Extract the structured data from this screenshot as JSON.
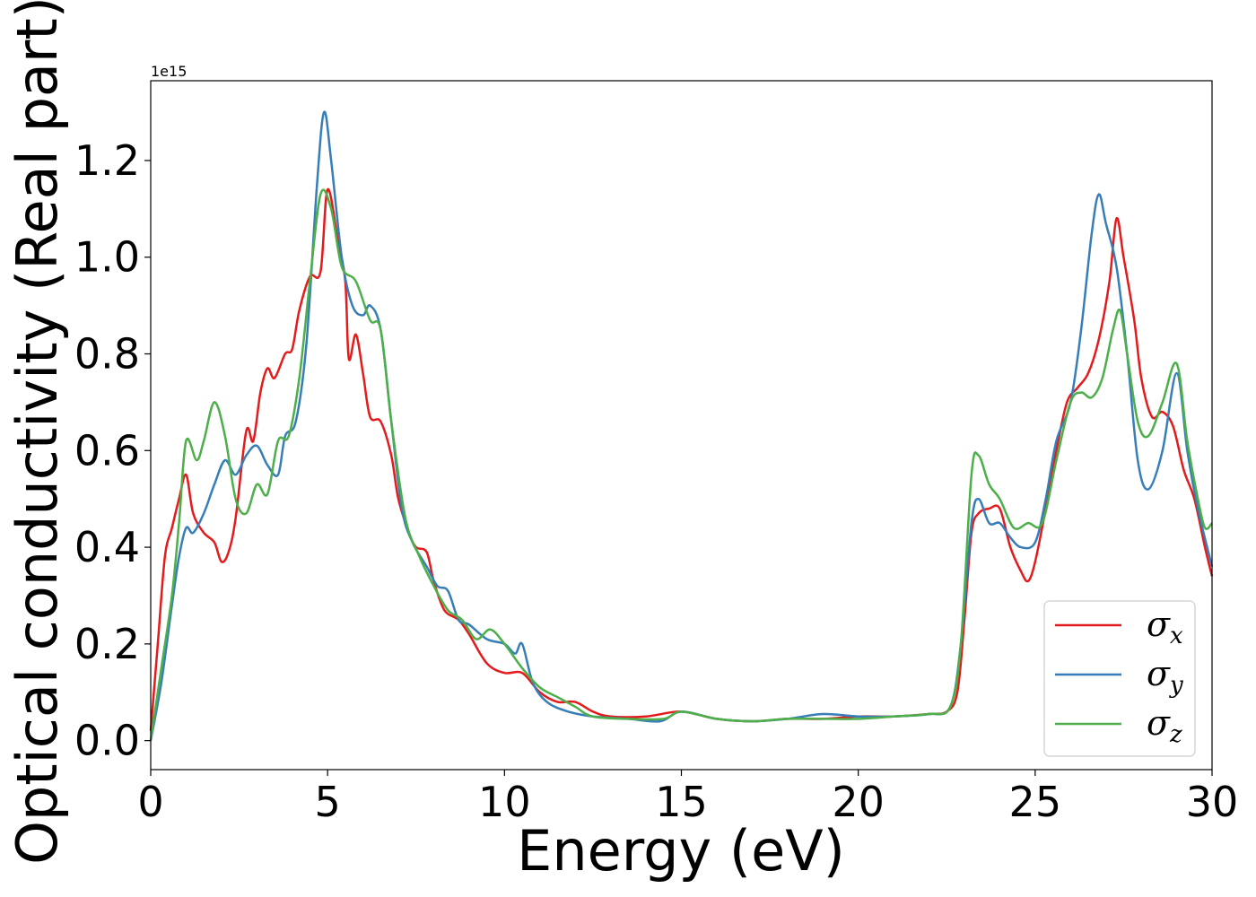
{
  "chart_data": {
    "type": "line",
    "title": "",
    "xlabel": "Energy (eV)",
    "ylabel": "Optical conductivity (Real part)",
    "y_offset_label": "1e15",
    "xlim": [
      0,
      30
    ],
    "ylim": [
      -0.06,
      1.365
    ],
    "xticks": [
      0,
      5,
      10,
      15,
      20,
      25,
      30
    ],
    "xtick_labels": [
      "0",
      "5",
      "10",
      "15",
      "20",
      "25",
      "30"
    ],
    "yticks": [
      0.0,
      0.2,
      0.4,
      0.6,
      0.8,
      1.0,
      1.2
    ],
    "ytick_labels": [
      "0.0",
      "0.2",
      "0.4",
      "0.6",
      "0.8",
      "1.0",
      "1.2"
    ],
    "grid": false,
    "legend_position": "bottom-right",
    "series": [
      {
        "name": "σx",
        "symbol": "σ",
        "subscript": "x",
        "color": "#e41a1c",
        "points": [
          [
            0,
            0.02
          ],
          [
            0.2,
            0.2
          ],
          [
            0.4,
            0.38
          ],
          [
            0.6,
            0.44
          ],
          [
            0.8,
            0.5
          ],
          [
            1.0,
            0.55
          ],
          [
            1.2,
            0.47
          ],
          [
            1.5,
            0.43
          ],
          [
            1.8,
            0.41
          ],
          [
            2.0,
            0.37
          ],
          [
            2.2,
            0.39
          ],
          [
            2.4,
            0.46
          ],
          [
            2.7,
            0.64
          ],
          [
            2.9,
            0.62
          ],
          [
            3.1,
            0.72
          ],
          [
            3.3,
            0.77
          ],
          [
            3.5,
            0.75
          ],
          [
            3.8,
            0.8
          ],
          [
            4.0,
            0.81
          ],
          [
            4.2,
            0.89
          ],
          [
            4.5,
            0.96
          ],
          [
            4.8,
            0.97
          ],
          [
            5.0,
            1.14
          ],
          [
            5.3,
            1.03
          ],
          [
            5.5,
            0.95
          ],
          [
            5.6,
            0.79
          ],
          [
            5.8,
            0.84
          ],
          [
            6.0,
            0.76
          ],
          [
            6.2,
            0.67
          ],
          [
            6.5,
            0.66
          ],
          [
            6.8,
            0.59
          ],
          [
            7.0,
            0.5
          ],
          [
            7.3,
            0.43
          ],
          [
            7.5,
            0.4
          ],
          [
            7.8,
            0.39
          ],
          [
            8.0,
            0.33
          ],
          [
            8.3,
            0.27
          ],
          [
            8.7,
            0.25
          ],
          [
            9.0,
            0.22
          ],
          [
            9.5,
            0.16
          ],
          [
            10.0,
            0.14
          ],
          [
            10.5,
            0.14
          ],
          [
            11.0,
            0.1
          ],
          [
            11.5,
            0.08
          ],
          [
            12.0,
            0.08
          ],
          [
            12.5,
            0.06
          ],
          [
            13.0,
            0.05
          ],
          [
            14.0,
            0.05
          ],
          [
            15.0,
            0.06
          ],
          [
            16.0,
            0.045
          ],
          [
            17.0,
            0.04
          ],
          [
            18.0,
            0.045
          ],
          [
            19.0,
            0.045
          ],
          [
            20.0,
            0.05
          ],
          [
            21.0,
            0.05
          ],
          [
            22.0,
            0.055
          ],
          [
            22.5,
            0.06
          ],
          [
            22.8,
            0.1
          ],
          [
            23.0,
            0.25
          ],
          [
            23.2,
            0.43
          ],
          [
            23.4,
            0.47
          ],
          [
            23.7,
            0.48
          ],
          [
            24.0,
            0.48
          ],
          [
            24.3,
            0.4
          ],
          [
            24.6,
            0.35
          ],
          [
            24.8,
            0.33
          ],
          [
            25.0,
            0.37
          ],
          [
            25.3,
            0.48
          ],
          [
            25.6,
            0.6
          ],
          [
            25.9,
            0.7
          ],
          [
            26.2,
            0.73
          ],
          [
            26.5,
            0.76
          ],
          [
            26.8,
            0.83
          ],
          [
            27.1,
            0.95
          ],
          [
            27.3,
            1.08
          ],
          [
            27.5,
            1.0
          ],
          [
            27.8,
            0.87
          ],
          [
            28.0,
            0.75
          ],
          [
            28.3,
            0.67
          ],
          [
            28.6,
            0.68
          ],
          [
            28.9,
            0.65
          ],
          [
            29.2,
            0.56
          ],
          [
            29.5,
            0.5
          ],
          [
            29.8,
            0.4
          ],
          [
            30.0,
            0.34
          ]
        ]
      },
      {
        "name": "σy",
        "symbol": "σ",
        "subscript": "y",
        "color": "#377eb8",
        "points": [
          [
            0,
            0.0
          ],
          [
            0.3,
            0.12
          ],
          [
            0.6,
            0.28
          ],
          [
            0.8,
            0.38
          ],
          [
            1.0,
            0.44
          ],
          [
            1.2,
            0.43
          ],
          [
            1.5,
            0.47
          ],
          [
            1.8,
            0.53
          ],
          [
            2.1,
            0.58
          ],
          [
            2.4,
            0.55
          ],
          [
            2.7,
            0.59
          ],
          [
            3.0,
            0.61
          ],
          [
            3.3,
            0.57
          ],
          [
            3.6,
            0.55
          ],
          [
            3.8,
            0.63
          ],
          [
            4.1,
            0.66
          ],
          [
            4.4,
            0.82
          ],
          [
            4.7,
            1.15
          ],
          [
            4.9,
            1.3
          ],
          [
            5.1,
            1.2
          ],
          [
            5.4,
            1.0
          ],
          [
            5.7,
            0.9
          ],
          [
            6.0,
            0.88
          ],
          [
            6.2,
            0.9
          ],
          [
            6.5,
            0.85
          ],
          [
            6.8,
            0.66
          ],
          [
            7.1,
            0.48
          ],
          [
            7.4,
            0.41
          ],
          [
            7.8,
            0.36
          ],
          [
            8.1,
            0.32
          ],
          [
            8.4,
            0.31
          ],
          [
            8.7,
            0.25
          ],
          [
            9.0,
            0.24
          ],
          [
            9.5,
            0.21
          ],
          [
            10.0,
            0.2
          ],
          [
            10.3,
            0.18
          ],
          [
            10.5,
            0.2
          ],
          [
            10.8,
            0.12
          ],
          [
            11.2,
            0.08
          ],
          [
            11.8,
            0.06
          ],
          [
            12.5,
            0.05
          ],
          [
            13.5,
            0.045
          ],
          [
            14.4,
            0.04
          ],
          [
            15.0,
            0.06
          ],
          [
            16.0,
            0.045
          ],
          [
            17.0,
            0.04
          ],
          [
            18.0,
            0.045
          ],
          [
            19.0,
            0.055
          ],
          [
            20.0,
            0.05
          ],
          [
            21.0,
            0.05
          ],
          [
            22.0,
            0.055
          ],
          [
            22.6,
            0.07
          ],
          [
            22.9,
            0.2
          ],
          [
            23.2,
            0.45
          ],
          [
            23.4,
            0.5
          ],
          [
            23.7,
            0.45
          ],
          [
            24.0,
            0.45
          ],
          [
            24.3,
            0.42
          ],
          [
            24.6,
            0.4
          ],
          [
            25.0,
            0.41
          ],
          [
            25.3,
            0.5
          ],
          [
            25.6,
            0.62
          ],
          [
            26.0,
            0.7
          ],
          [
            26.3,
            0.85
          ],
          [
            26.6,
            1.05
          ],
          [
            26.8,
            1.13
          ],
          [
            27.0,
            1.07
          ],
          [
            27.3,
            0.98
          ],
          [
            27.6,
            0.8
          ],
          [
            27.9,
            0.58
          ],
          [
            28.2,
            0.52
          ],
          [
            28.6,
            0.6
          ],
          [
            29.0,
            0.76
          ],
          [
            29.3,
            0.6
          ],
          [
            29.6,
            0.48
          ],
          [
            30.0,
            0.36
          ]
        ]
      },
      {
        "name": "σz",
        "symbol": "σ",
        "subscript": "z",
        "color": "#4daf4a",
        "points": [
          [
            0,
            0.0
          ],
          [
            0.3,
            0.15
          ],
          [
            0.6,
            0.3
          ],
          [
            0.8,
            0.45
          ],
          [
            1.0,
            0.62
          ],
          [
            1.3,
            0.58
          ],
          [
            1.5,
            0.62
          ],
          [
            1.8,
            0.7
          ],
          [
            2.1,
            0.63
          ],
          [
            2.4,
            0.5
          ],
          [
            2.7,
            0.47
          ],
          [
            3.0,
            0.53
          ],
          [
            3.3,
            0.51
          ],
          [
            3.6,
            0.62
          ],
          [
            3.9,
            0.63
          ],
          [
            4.2,
            0.75
          ],
          [
            4.5,
            0.95
          ],
          [
            4.8,
            1.13
          ],
          [
            5.1,
            1.1
          ],
          [
            5.4,
            0.98
          ],
          [
            5.8,
            0.95
          ],
          [
            6.2,
            0.87
          ],
          [
            6.5,
            0.85
          ],
          [
            6.8,
            0.66
          ],
          [
            7.2,
            0.46
          ],
          [
            7.6,
            0.38
          ],
          [
            8.0,
            0.32
          ],
          [
            8.4,
            0.27
          ],
          [
            8.8,
            0.25
          ],
          [
            9.2,
            0.21
          ],
          [
            9.6,
            0.23
          ],
          [
            10.0,
            0.2
          ],
          [
            10.5,
            0.15
          ],
          [
            11.0,
            0.11
          ],
          [
            11.5,
            0.09
          ],
          [
            12.0,
            0.07
          ],
          [
            12.5,
            0.05
          ],
          [
            13.5,
            0.045
          ],
          [
            14.5,
            0.045
          ],
          [
            15.0,
            0.06
          ],
          [
            16.0,
            0.045
          ],
          [
            17.0,
            0.04
          ],
          [
            18.0,
            0.045
          ],
          [
            19.0,
            0.045
          ],
          [
            20.0,
            0.045
          ],
          [
            21.0,
            0.05
          ],
          [
            22.0,
            0.055
          ],
          [
            22.6,
            0.07
          ],
          [
            22.9,
            0.2
          ],
          [
            23.2,
            0.55
          ],
          [
            23.4,
            0.59
          ],
          [
            23.7,
            0.53
          ],
          [
            24.0,
            0.5
          ],
          [
            24.4,
            0.44
          ],
          [
            24.8,
            0.45
          ],
          [
            25.2,
            0.45
          ],
          [
            25.6,
            0.58
          ],
          [
            26.0,
            0.7
          ],
          [
            26.3,
            0.72
          ],
          [
            26.6,
            0.71
          ],
          [
            26.9,
            0.75
          ],
          [
            27.2,
            0.85
          ],
          [
            27.4,
            0.89
          ],
          [
            27.6,
            0.8
          ],
          [
            27.9,
            0.66
          ],
          [
            28.2,
            0.63
          ],
          [
            28.6,
            0.7
          ],
          [
            29.0,
            0.78
          ],
          [
            29.3,
            0.62
          ],
          [
            29.6,
            0.5
          ],
          [
            29.8,
            0.44
          ],
          [
            30.0,
            0.45
          ]
        ]
      }
    ]
  }
}
